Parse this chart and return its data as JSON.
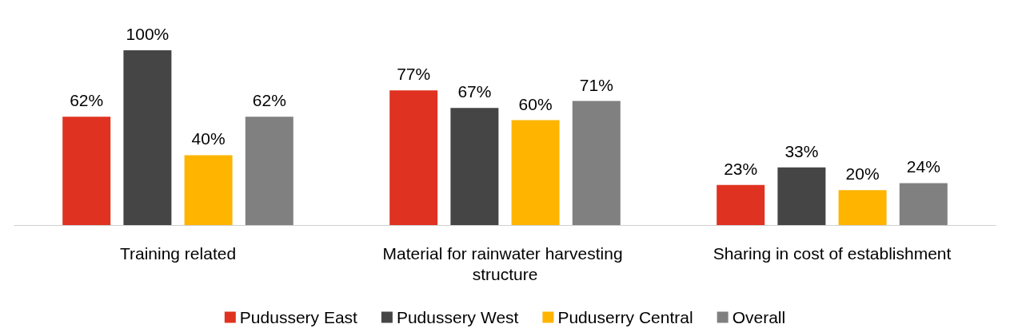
{
  "chart_data": {
    "type": "bar",
    "categories": [
      "Training related",
      "Material for rainwater harvesting structure",
      "Sharing in cost of establishment"
    ],
    "series": [
      {
        "name": "Pudussery East",
        "color": "#e03220",
        "values": [
          62,
          77,
          23
        ],
        "value_labels": [
          "62%",
          "77%",
          "23%"
        ]
      },
      {
        "name": "Pudussery West",
        "color": "#454545",
        "values": [
          100,
          67,
          33
        ],
        "value_labels": [
          "100%",
          "67%",
          "33%"
        ]
      },
      {
        "name": "Puduserry Central",
        "color": "#ffb400",
        "values": [
          40,
          60,
          20
        ],
        "value_labels": [
          "40%",
          "60%",
          "20%"
        ]
      },
      {
        "name": "Overall",
        "color": "#808080",
        "values": [
          62,
          71,
          24
        ],
        "value_labels": [
          "62%",
          "71%",
          "24%"
        ]
      }
    ],
    "legend": "bottom"
  }
}
